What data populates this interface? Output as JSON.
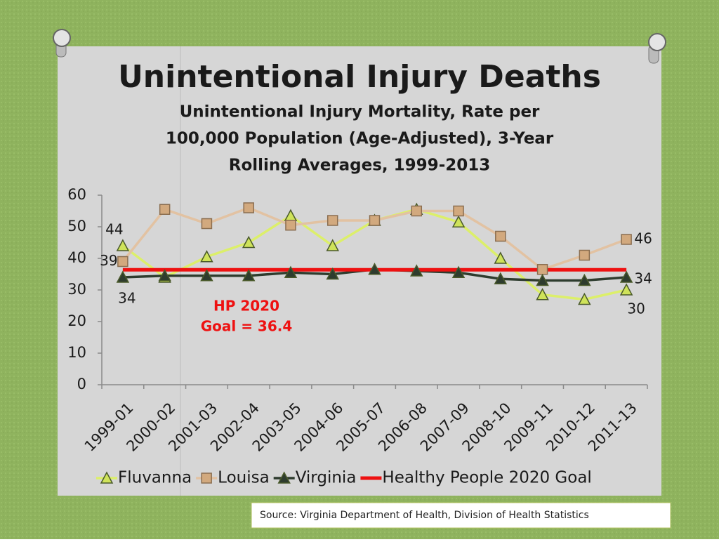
{
  "chart_data": {
    "type": "line",
    "title": "Unintentional Injury Deaths",
    "subtitle": [
      "Unintentional Injury Mortality, Rate per",
      "100,000 Population (Age-Adjusted), 3-Year",
      "Rolling Averages, 1999-2013"
    ],
    "categories": [
      "1999-01",
      "2000-02",
      "2001-03",
      "2002-04",
      "2003-05",
      "2004-06",
      "2005-07",
      "2006-08",
      "2007-09",
      "2008-10",
      "2009-11",
      "2010-12",
      "2011-13"
    ],
    "series": [
      {
        "name": "Fluvanna",
        "color": "#dcef6a",
        "marker": "triangle",
        "marker_color": "#cfe35a",
        "label_indices": [
          0,
          12
        ],
        "values": [
          44,
          34,
          40.5,
          45,
          53.5,
          44,
          52,
          55.5,
          51.5,
          40,
          28.5,
          27,
          30
        ]
      },
      {
        "name": "Louisa",
        "color": "#e2c2a2",
        "marker": "square",
        "marker_color": "#d2a97e",
        "label_indices": [
          0,
          12
        ],
        "values": [
          39,
          55.5,
          51,
          56,
          50.5,
          52,
          52,
          55,
          55,
          47,
          36.5,
          41,
          46
        ]
      },
      {
        "name": "Virginia",
        "color": "#2e3c2e",
        "marker": "triangle",
        "marker_color": "#2e3c2e",
        "label_indices": [
          0,
          12
        ],
        "values": [
          34,
          34.5,
          34.5,
          34.5,
          35.5,
          35,
          36.5,
          36,
          35.5,
          33.5,
          33,
          33,
          34
        ]
      }
    ],
    "goal": {
      "name": "Healthy People 2020 Goal",
      "value": 36.4,
      "color": "#ee1111"
    },
    "annotation": [
      "HP 2020",
      "Goal = 36.4"
    ],
    "ylim": [
      0,
      60
    ],
    "yticks": [
      0,
      10,
      20,
      30,
      40,
      50,
      60
    ],
    "legend": "bottom",
    "source": "Source: Virginia Department of Health, Division of Health Statistics"
  }
}
